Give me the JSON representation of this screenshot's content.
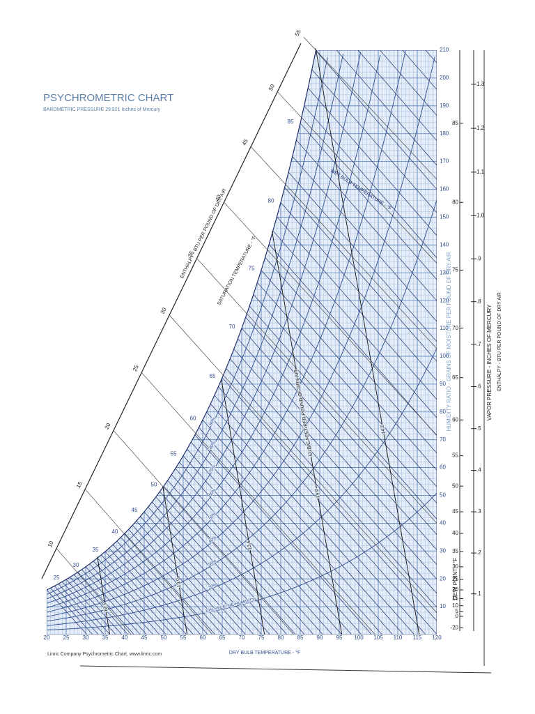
{
  "title": "PSYCHROMETRIC CHART",
  "subtitle": "BAROMETRIC PRESSURE 29.921 Inches of Mercury",
  "footer": "Linric Company Psychrometric Chart, www.linric.com",
  "chart_data": {
    "type": "psychrometric",
    "xlabel": "DRY BULB TEMPERATURE - °F",
    "ylabel": "HUMIDITY RATIO - GRAINS OF MOISTURE PER POUND OF DRY AIR",
    "xlim": [
      20,
      120
    ],
    "xticks": [
      20,
      25,
      30,
      35,
      40,
      45,
      50,
      55,
      60,
      65,
      70,
      75,
      80,
      85,
      90,
      95,
      100,
      105,
      110,
      115,
      120
    ],
    "ylim": [
      0,
      210
    ],
    "yticks": [
      10,
      20,
      30,
      40,
      50,
      60,
      70,
      80,
      90,
      100,
      110,
      120,
      130,
      140,
      150,
      160,
      170,
      180,
      190,
      200,
      210
    ],
    "grid": true,
    "relative_humidity": {
      "values": [
        10,
        20,
        30,
        40,
        50,
        60,
        70,
        80,
        90
      ],
      "value_labels": [
        "10% RELATIVE HUMIDITY",
        "20%",
        "30%",
        "40%",
        "50%",
        "60%",
        "70%",
        "80%",
        "90%"
      ]
    },
    "saturation_label": "SATURATION TEMPERATURE - °F",
    "saturation_ticks": [
      25,
      30,
      35,
      40,
      45,
      50,
      55,
      60,
      65,
      70,
      75,
      80,
      85
    ],
    "wet_bulb_label": "WET BULB TEMPERATURE - °F",
    "enthalpy_label": "ENTHALPY - BTU PER POUND OF DRY AIR",
    "enthalpy": [
      10,
      15,
      20,
      25,
      30,
      35,
      40,
      45,
      50,
      55
    ],
    "volume_label": "CUBIC FEET PER POUND OF DRY AIR",
    "volumes": {
      "values": [
        12.5,
        13,
        13.5,
        14,
        14.5
      ],
      "value_labels": [
        "12.5",
        "13.0",
        "13.5",
        "14.0",
        "14.5"
      ]
    },
    "dew_point_label": "DEW POINT - °F",
    "dew_point_ticks": [
      -20,
      0,
      5,
      10,
      15,
      20,
      25,
      30,
      35,
      40,
      45,
      50,
      55,
      60,
      65,
      70,
      75,
      80,
      85
    ],
    "vapor_pressure_label": "VAPOR PRESSURE - INCHES OF MERCURY",
    "vapor_pressure_ticks": [
      {
        "value": 0.1,
        "label": ".1"
      },
      {
        "value": 0.2,
        "label": ".2"
      },
      {
        "value": 0.3,
        "label": ".3"
      },
      {
        "value": 0.4,
        "label": ".4"
      },
      {
        "value": 0.5,
        "label": ".5"
      },
      {
        "value": 0.6,
        "label": ".6"
      },
      {
        "value": 0.7,
        "label": ".7"
      },
      {
        "value": 0.8,
        "label": ".8"
      },
      {
        "value": 0.9,
        "label": ".9"
      },
      {
        "value": 1.0,
        "label": "1.0"
      },
      1.1,
      1.2,
      1.3
    ]
  }
}
